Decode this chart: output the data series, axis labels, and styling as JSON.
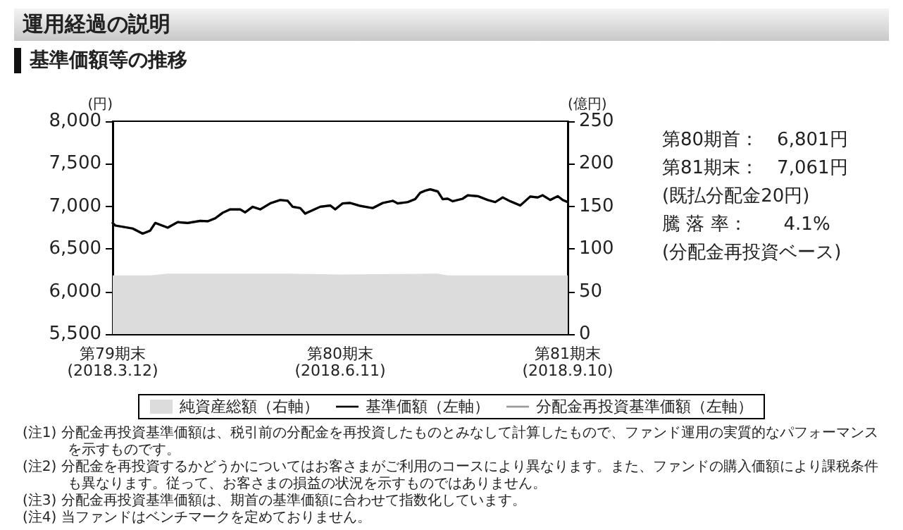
{
  "chart_data": {
    "type": "line",
    "title": "運用経過の説明",
    "subtitle": "基準価額等の推移",
    "ylabel": "(円)",
    "y2label": "(億円)",
    "x": [
      "2018-03-12",
      "2018-03-13",
      "2018-03-16",
      "2018-03-20",
      "2018-03-24",
      "2018-03-27",
      "2018-03-29",
      "2018-04-03",
      "2018-04-07",
      "2018-04-11",
      "2018-04-16",
      "2018-04-19",
      "2018-04-22",
      "2018-04-25",
      "2018-04-28",
      "2018-05-02",
      "2018-05-04",
      "2018-05-07",
      "2018-05-10",
      "2018-05-14",
      "2018-05-18",
      "2018-05-21",
      "2018-05-23",
      "2018-05-26",
      "2018-05-28",
      "2018-06-03",
      "2018-06-07",
      "2018-06-09",
      "2018-06-12",
      "2018-06-15",
      "2018-06-19",
      "2018-06-24",
      "2018-06-28",
      "2018-07-02",
      "2018-07-04",
      "2018-07-08",
      "2018-07-11",
      "2018-07-13",
      "2018-07-15",
      "2018-07-17",
      "2018-07-20",
      "2018-07-22",
      "2018-07-24",
      "2018-07-26",
      "2018-07-30",
      "2018-08-01",
      "2018-08-05",
      "2018-08-09",
      "2018-08-12",
      "2018-08-15",
      "2018-08-18",
      "2018-08-22",
      "2018-08-26",
      "2018-08-29",
      "2018-08-31",
      "2018-09-03",
      "2018-09-06",
      "2018-09-08",
      "2018-09-10"
    ],
    "series": [
      {
        "name": "純資産総額（右軸）",
        "type": "area",
        "axis": "y2",
        "color": "#dcdcdc",
        "x": [
          "2018-03-12",
          "2018-03-27",
          "2018-04-03",
          "2018-05-21",
          "2018-06-11",
          "2018-07-20",
          "2018-07-24",
          "2018-09-10"
        ],
        "values": [
          69,
          69,
          71,
          71,
          70,
          71,
          69,
          69
        ]
      },
      {
        "name": "基準価額（左軸）",
        "color": "#000000",
        "values": [
          6805,
          6775,
          6760,
          6740,
          6680,
          6715,
          6805,
          6750,
          6815,
          6805,
          6830,
          6825,
          6860,
          6925,
          6965,
          6965,
          6930,
          6995,
          6965,
          7035,
          7075,
          7065,
          6995,
          6980,
          6915,
          6995,
          7010,
          6965,
          7035,
          7040,
          7005,
          6980,
          7040,
          7065,
          7035,
          7050,
          7085,
          7160,
          7185,
          7200,
          7175,
          7085,
          7090,
          7060,
          7090,
          7130,
          7120,
          7075,
          7050,
          7105,
          7060,
          7010,
          7115,
          7105,
          7130,
          7075,
          7120,
          7075,
          7050
        ]
      },
      {
        "name": "分配金再投資基準価額（左軸）",
        "color": "#999999",
        "values": [
          6805,
          6775,
          6760,
          6740,
          6680,
          6715,
          6805,
          6750,
          6815,
          6805,
          6830,
          6825,
          6860,
          6925,
          6965,
          6965,
          6930,
          6995,
          6965,
          7035,
          7075,
          7065,
          6995,
          6980,
          6915,
          6995,
          7010,
          6965,
          7035,
          7040,
          7005,
          6980,
          7040,
          7065,
          7035,
          7050,
          7085,
          7160,
          7185,
          7200,
          7175,
          7085,
          7090,
          7060,
          7090,
          7130,
          7120,
          7075,
          7050,
          7105,
          7060,
          7010,
          7115,
          7105,
          7130,
          7075,
          7120,
          7075,
          7050
        ]
      }
    ],
    "xlim": [
      "2018-03-12",
      "2018-09-10"
    ],
    "xticks": [
      {
        "value": "2018-03-12",
        "label": "第79期末\n(2018.3.12)"
      },
      {
        "value": "2018-06-11",
        "label": "第80期末\n(2018.6.11)"
      },
      {
        "value": "2018-09-10",
        "label": "第81期末\n(2018.9.10)"
      }
    ],
    "ylim": [
      5500,
      8000
    ],
    "yticks": [
      {
        "value": 5500,
        "label": "5,500"
      },
      {
        "value": 6000,
        "label": "6,000"
      },
      {
        "value": 6500,
        "label": "6,500"
      },
      {
        "value": 7000,
        "label": "7,000"
      },
      {
        "value": 7500,
        "label": "7,500"
      },
      {
        "value": 8000,
        "label": "8,000"
      }
    ],
    "y2lim": [
      0,
      250
    ],
    "y2ticks": [
      0,
      50,
      100,
      150,
      200,
      250
    ],
    "grid": false,
    "legend": "bottom",
    "marker": "none",
    "line_style": "solid",
    "annotations": [
      "第80期首：　6,801円",
      "第81期末：　7,061円",
      "(既払分配金20円)",
      "騰 落 率：　　4.1%",
      "(分配金再投資ベース)",
      "(注1) 分配金再投資基準価額は、税引前の分配金を再投資したものとみなして計算したもので、ファンド運用の実質的なパフォーマンスを示すものです。",
      "(注2) 分配金を再投資するかどうかについてはお客さまがご利用のコースにより異なります。また、ファンドの購入価額により課税条件も異なります。従って、お客さまの損益の状況を示すものではありません。",
      "(注3) 分配金再投資基準価額は、期首の基準価額に合わせて指数化しています。",
      "(注4) 当ファンドはベンチマークを定めておりません。"
    ]
  }
}
